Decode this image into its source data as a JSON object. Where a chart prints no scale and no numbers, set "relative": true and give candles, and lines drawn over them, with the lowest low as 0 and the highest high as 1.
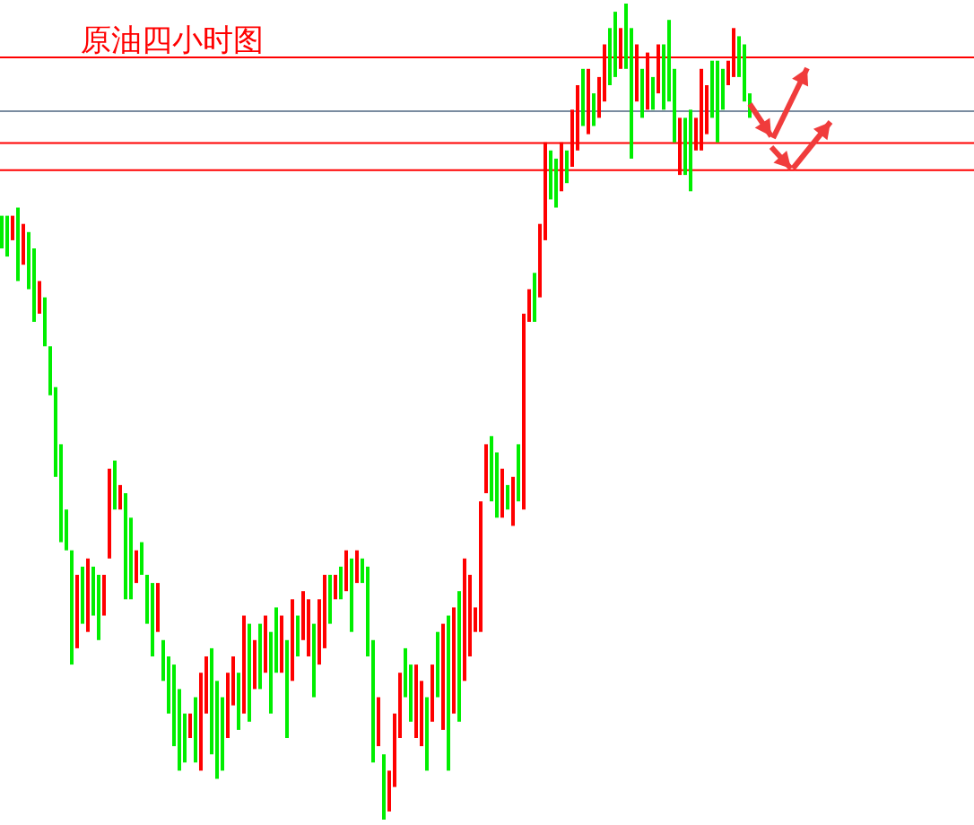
{
  "chart_data": {
    "type": "candlestick",
    "title": "原油四小时图",
    "relative": true,
    "categories": [
      null,
      null,
      null,
      null,
      null,
      null,
      null,
      null,
      null,
      null,
      null,
      null,
      null,
      null,
      null,
      null,
      null,
      null,
      null,
      null,
      null,
      null,
      null,
      null,
      null,
      null,
      null,
      null,
      null,
      null,
      null,
      null,
      null,
      null,
      null,
      null,
      null,
      null,
      null,
      null,
      null,
      null,
      null,
      null,
      null,
      null,
      null,
      null,
      null,
      null,
      null,
      null,
      null,
      null,
      null,
      null,
      null,
      null,
      null,
      null,
      null,
      null,
      null,
      null,
      null,
      null,
      null,
      null,
      null,
      null,
      null,
      null,
      null,
      null,
      null,
      null,
      null,
      null,
      null,
      null,
      null,
      null,
      null,
      null,
      null,
      null,
      null,
      null,
      null,
      null,
      null,
      null,
      null,
      null,
      null,
      null,
      null,
      null,
      null,
      null,
      null,
      null,
      null,
      null,
      null,
      null,
      null,
      null,
      null,
      null,
      null,
      null,
      null,
      null,
      null,
      null,
      null,
      null,
      null,
      null,
      null,
      null,
      null,
      null,
      null,
      null,
      null,
      null,
      null,
      null,
      null,
      null,
      null,
      null,
      null,
      null,
      null,
      null,
      null,
      null
    ],
    "ohlc": [
      [
        0.74,
        0.74,
        0.7,
        0.7
      ],
      [
        0.74,
        0.74,
        0.69,
        0.69
      ],
      [
        0.71,
        0.74,
        0.71,
        0.74
      ],
      [
        0.75,
        0.75,
        0.66,
        0.66
      ],
      [
        0.68,
        0.73,
        0.68,
        0.73
      ],
      [
        0.72,
        0.72,
        0.65,
        0.65
      ],
      [
        0.7,
        0.7,
        0.61,
        0.61
      ],
      [
        0.62,
        0.66,
        0.62,
        0.66
      ],
      [
        0.64,
        0.64,
        0.58,
        0.58
      ],
      [
        0.58,
        0.58,
        0.52,
        0.52
      ],
      [
        0.53,
        0.53,
        0.42,
        0.42
      ],
      [
        0.46,
        0.46,
        0.34,
        0.34
      ],
      [
        0.38,
        0.38,
        0.33,
        0.33
      ],
      [
        0.33,
        0.33,
        0.19,
        0.19
      ],
      [
        0.21,
        0.3,
        0.21,
        0.3
      ],
      [
        0.31,
        0.31,
        0.24,
        0.24
      ],
      [
        0.23,
        0.32,
        0.23,
        0.32
      ],
      [
        0.31,
        0.31,
        0.25,
        0.25
      ],
      [
        0.3,
        0.3,
        0.22,
        0.22
      ],
      [
        0.25,
        0.3,
        0.25,
        0.3
      ],
      [
        0.32,
        0.43,
        0.32,
        0.43
      ],
      [
        0.44,
        0.44,
        0.38,
        0.38
      ],
      [
        0.38,
        0.41,
        0.38,
        0.41
      ],
      [
        0.4,
        0.4,
        0.27,
        0.27
      ],
      [
        0.37,
        0.37,
        0.27,
        0.27
      ],
      [
        0.29,
        0.33,
        0.29,
        0.33
      ],
      [
        0.34,
        0.34,
        0.3,
        0.3
      ],
      [
        0.3,
        0.3,
        0.24,
        0.24
      ],
      [
        0.29,
        0.29,
        0.2,
        0.2
      ],
      [
        0.23,
        0.29,
        0.23,
        0.29
      ],
      [
        0.22,
        0.22,
        0.17,
        0.17
      ],
      [
        0.2,
        0.2,
        0.13,
        0.13
      ],
      [
        0.19,
        0.19,
        0.09,
        0.09
      ],
      [
        0.16,
        0.16,
        0.06,
        0.06
      ],
      [
        0.13,
        0.13,
        0.07,
        0.07
      ],
      [
        0.1,
        0.13,
        0.1,
        0.13
      ],
      [
        0.15,
        0.15,
        0.07,
        0.07
      ],
      [
        0.06,
        0.18,
        0.06,
        0.18
      ],
      [
        0.13,
        0.2,
        0.13,
        0.2
      ],
      [
        0.21,
        0.21,
        0.08,
        0.08
      ],
      [
        0.17,
        0.17,
        0.05,
        0.05
      ],
      [
        0.15,
        0.15,
        0.06,
        0.06
      ],
      [
        0.1,
        0.18,
        0.1,
        0.18
      ],
      [
        0.14,
        0.2,
        0.14,
        0.2
      ],
      [
        0.18,
        0.18,
        0.11,
        0.11
      ],
      [
        0.13,
        0.25,
        0.13,
        0.25
      ],
      [
        0.24,
        0.24,
        0.12,
        0.12
      ],
      [
        0.16,
        0.22,
        0.16,
        0.22
      ],
      [
        0.24,
        0.24,
        0.16,
        0.16
      ],
      [
        0.18,
        0.25,
        0.18,
        0.25
      ],
      [
        0.23,
        0.23,
        0.13,
        0.13
      ],
      [
        0.26,
        0.26,
        0.18,
        0.18
      ],
      [
        0.18,
        0.25,
        0.18,
        0.25
      ],
      [
        0.22,
        0.22,
        0.1,
        0.1
      ],
      [
        0.17,
        0.27,
        0.17,
        0.27
      ],
      [
        0.25,
        0.25,
        0.2,
        0.2
      ],
      [
        0.22,
        0.28,
        0.22,
        0.28
      ],
      [
        0.2,
        0.27,
        0.2,
        0.27
      ],
      [
        0.24,
        0.24,
        0.15,
        0.15
      ],
      [
        0.19,
        0.27,
        0.19,
        0.27
      ],
      [
        0.21,
        0.3,
        0.21,
        0.3
      ],
      [
        0.3,
        0.3,
        0.24,
        0.24
      ],
      [
        0.27,
        0.3,
        0.27,
        0.3
      ],
      [
        0.31,
        0.31,
        0.27,
        0.27
      ],
      [
        0.28,
        0.33,
        0.28,
        0.33
      ],
      [
        0.32,
        0.32,
        0.23,
        0.23
      ],
      [
        0.29,
        0.33,
        0.29,
        0.33
      ],
      [
        0.32,
        0.32,
        0.29,
        0.29
      ],
      [
        0.31,
        0.31,
        0.2,
        0.2
      ],
      [
        0.22,
        0.22,
        0.07,
        0.07
      ],
      [
        0.09,
        0.15,
        0.09,
        0.15
      ],
      [
        0.08,
        0.08,
        0.0,
        0.0
      ],
      [
        0.01,
        0.06,
        0.01,
        0.06
      ],
      [
        0.04,
        0.13,
        0.04,
        0.13
      ],
      [
        0.1,
        0.18,
        0.1,
        0.18
      ],
      [
        0.21,
        0.21,
        0.15,
        0.15
      ],
      [
        0.19,
        0.19,
        0.12,
        0.12
      ],
      [
        0.1,
        0.19,
        0.1,
        0.19
      ],
      [
        0.09,
        0.17,
        0.09,
        0.17
      ],
      [
        0.15,
        0.15,
        0.06,
        0.06
      ],
      [
        0.12,
        0.19,
        0.12,
        0.19
      ],
      [
        0.23,
        0.23,
        0.15,
        0.15
      ],
      [
        0.11,
        0.24,
        0.11,
        0.24
      ],
      [
        0.25,
        0.25,
        0.06,
        0.06
      ],
      [
        0.13,
        0.26,
        0.13,
        0.26
      ],
      [
        0.28,
        0.28,
        0.12,
        0.12
      ],
      [
        0.17,
        0.32,
        0.17,
        0.32
      ],
      [
        0.2,
        0.3,
        0.2,
        0.3
      ],
      [
        0.23,
        0.26,
        0.23,
        0.26
      ],
      [
        0.23,
        0.39,
        0.23,
        0.39
      ],
      [
        0.4,
        0.46,
        0.4,
        0.46
      ],
      [
        0.47,
        0.47,
        0.39,
        0.39
      ],
      [
        0.45,
        0.45,
        0.37,
        0.37
      ],
      [
        0.37,
        0.43,
        0.37,
        0.43
      ],
      [
        0.41,
        0.41,
        0.38,
        0.38
      ],
      [
        0.36,
        0.42,
        0.36,
        0.42
      ],
      [
        0.46,
        0.46,
        0.39,
        0.39
      ],
      [
        0.38,
        0.62,
        0.38,
        0.62
      ],
      [
        0.61,
        0.65,
        0.61,
        0.65
      ],
      [
        0.67,
        0.67,
        0.61,
        0.61
      ],
      [
        0.64,
        0.73,
        0.64,
        0.73
      ],
      [
        0.71,
        0.83,
        0.71,
        0.83
      ],
      [
        0.82,
        0.82,
        0.76,
        0.76
      ],
      [
        0.81,
        0.81,
        0.75,
        0.75
      ],
      [
        0.77,
        0.83,
        0.77,
        0.83
      ],
      [
        0.82,
        0.82,
        0.78,
        0.78
      ],
      [
        0.8,
        0.87,
        0.8,
        0.87
      ],
      [
        0.82,
        0.9,
        0.82,
        0.9
      ],
      [
        0.92,
        0.92,
        0.85,
        0.85
      ],
      [
        0.84,
        0.92,
        0.84,
        0.92
      ],
      [
        0.89,
        0.89,
        0.85,
        0.85
      ],
      [
        0.86,
        0.91,
        0.86,
        0.91
      ],
      [
        0.88,
        0.95,
        0.88,
        0.95
      ],
      [
        0.97,
        0.97,
        0.9,
        0.9
      ],
      [
        0.99,
        0.99,
        0.91,
        0.91
      ],
      [
        0.92,
        0.97,
        0.92,
        0.97
      ],
      [
        1.0,
        1.0,
        0.92,
        0.92
      ],
      [
        0.97,
        0.97,
        0.81,
        0.81
      ],
      [
        0.88,
        0.95,
        0.88,
        0.95
      ],
      [
        0.92,
        0.92,
        0.86,
        0.86
      ],
      [
        0.87,
        0.94,
        0.87,
        0.94
      ],
      [
        0.91,
        0.91,
        0.87,
        0.87
      ],
      [
        0.89,
        0.95,
        0.89,
        0.95
      ],
      [
        0.95,
        0.95,
        0.87,
        0.87
      ],
      [
        0.98,
        0.98,
        0.88,
        0.88
      ],
      [
        0.92,
        0.92,
        0.83,
        0.83
      ],
      [
        0.79,
        0.86,
        0.79,
        0.86
      ],
      [
        0.86,
        0.86,
        0.79,
        0.79
      ],
      [
        0.87,
        0.87,
        0.77,
        0.77
      ],
      [
        0.82,
        0.86,
        0.82,
        0.86
      ],
      [
        0.82,
        0.92,
        0.82,
        0.92
      ],
      [
        0.84,
        0.9,
        0.84,
        0.9
      ],
      [
        0.93,
        0.93,
        0.86,
        0.86
      ],
      [
        0.93,
        0.93,
        0.83,
        0.83
      ],
      [
        0.92,
        0.92,
        0.87,
        0.87
      ],
      [
        0.9,
        0.93,
        0.9,
        0.93
      ],
      [
        0.91,
        0.97,
        0.91,
        0.97
      ],
      [
        0.96,
        0.96,
        0.91,
        0.91
      ],
      [
        0.95,
        0.95,
        0.88,
        0.88
      ],
      [
        0.89,
        0.89,
        0.86,
        0.86
      ]
    ],
    "colors": [
      "#00ee00",
      "#00ee00",
      "#ff0000",
      "#00ee00",
      "#ff0000",
      "#00ee00",
      "#00ee00",
      "#ff0000",
      "#00ee00",
      "#00ee00",
      "#00ee00",
      "#00ee00",
      "#00ee00",
      "#00ee00",
      "#ff0000",
      "#00ee00",
      "#ff0000",
      "#00ee00",
      "#00ee00",
      "#ff0000",
      "#ff0000",
      "#00ee00",
      "#ff0000",
      "#00ee00",
      "#00ee00",
      "#ff0000",
      "#00ee00",
      "#00ee00",
      "#00ee00",
      "#ff0000",
      "#00ee00",
      "#00ee00",
      "#00ee00",
      "#00ee00",
      "#00ee00",
      "#ff0000",
      "#00ee00",
      "#ff0000",
      "#ff0000",
      "#00ee00",
      "#00ee00",
      "#00ee00",
      "#ff0000",
      "#ff0000",
      "#00ee00",
      "#ff0000",
      "#00ee00",
      "#ff0000",
      "#00ee00",
      "#ff0000",
      "#00ee00",
      "#00ee00",
      "#ff0000",
      "#00ee00",
      "#ff0000",
      "#00ee00",
      "#ff0000",
      "#ff0000",
      "#00ee00",
      "#ff0000",
      "#ff0000",
      "#00ee00",
      "#ff0000",
      "#00ee00",
      "#ff0000",
      "#00ee00",
      "#ff0000",
      "#00ee00",
      "#00ee00",
      "#00ee00",
      "#ff0000",
      "#00ee00",
      "#ff0000",
      "#ff0000",
      "#ff0000",
      "#00ee00",
      "#00ee00",
      "#ff0000",
      "#ff0000",
      "#00ee00",
      "#ff0000",
      "#00ee00",
      "#ff0000",
      "#00ee00",
      "#ff0000",
      "#00ee00",
      "#ff0000",
      "#ff0000",
      "#ff0000",
      "#ff0000",
      "#ff0000",
      "#00ee00",
      "#00ee00",
      "#ff0000",
      "#00ee00",
      "#ff0000",
      "#00ee00",
      "#ff0000",
      "#ff0000",
      "#00ee00",
      "#ff0000",
      "#ff0000",
      "#00ee00",
      "#00ee00",
      "#ff0000",
      "#00ee00",
      "#ff0000",
      "#ff0000",
      "#00ee00",
      "#ff0000",
      "#00ee00",
      "#ff0000",
      "#ff0000",
      "#00ee00",
      "#00ee00",
      "#ff0000",
      "#00ee00",
      "#00ee00",
      "#ff0000",
      "#00ee00",
      "#ff0000",
      "#00ee00",
      "#ff0000",
      "#00ee00",
      "#00ee00",
      "#00ee00",
      "#ff0000",
      "#00ee00",
      "#00ee00",
      "#ff0000",
      "#ff0000",
      "#ff0000",
      "#00ee00",
      "#00ee00",
      "#00ee00",
      "#ff0000",
      "#ff0000",
      "#00ee00",
      "#00ee00",
      "#00ee00"
    ],
    "ref_lines": [
      {
        "axis": "y",
        "value": 0.934,
        "color": "#ff0000"
      },
      {
        "axis": "y",
        "value": 0.868,
        "color": "#7a8ca0"
      },
      {
        "axis": "y",
        "value": 0.829,
        "color": "#ff0000"
      },
      {
        "axis": "y",
        "value": 0.796,
        "color": "#ff0000"
      }
    ]
  }
}
